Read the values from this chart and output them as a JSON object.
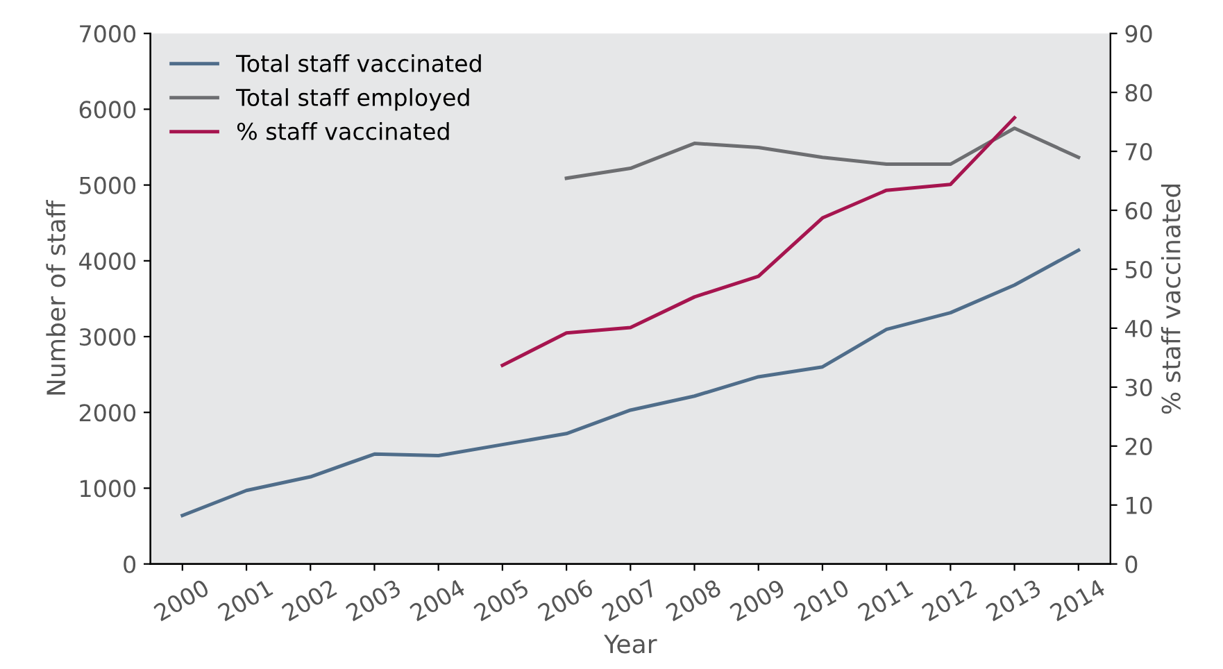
{
  "chart_data": {
    "type": "line",
    "xlabel": "Year",
    "ylabel": "Number of staff",
    "y2label": "% staff vaccinated",
    "categories": [
      "2000",
      "2001",
      "2002",
      "2003",
      "2004",
      "2005",
      "2006",
      "2007",
      "2008",
      "2009",
      "2010",
      "2011",
      "2012",
      "2013",
      "2014"
    ],
    "series": [
      {
        "name": "Total staff vaccinated",
        "color": "#4f6d8a",
        "values": [
          640,
          970,
          1150,
          1450,
          1430,
          1575,
          1720,
          2030,
          2215,
          2470,
          2600,
          3095,
          3315,
          3680,
          4140
        ]
      },
      {
        "name": "Total staff employed",
        "color": "#6d6e71",
        "values": [
          null,
          null,
          null,
          null,
          null,
          null,
          5090,
          5220,
          5550,
          5495,
          5365,
          5275,
          5275,
          5750,
          5365
        ]
      },
      {
        "name": "% staff vaccinated",
        "color": "#a6154f",
        "axis": "y2",
        "values": [
          null,
          null,
          null,
          null,
          null,
          33.7,
          39.2,
          40.1,
          45.3,
          48.8,
          58.7,
          63.4,
          64.4,
          75.7,
          null
        ]
      }
    ],
    "ylim": [
      0,
      7000
    ],
    "yticks": [
      0,
      1000,
      2000,
      3000,
      4000,
      5000,
      6000,
      7000
    ],
    "y2lim": [
      0,
      90
    ],
    "y2ticks": [
      0,
      10,
      20,
      30,
      40,
      50,
      60,
      70,
      80,
      90
    ],
    "grid": false,
    "legend": "top left",
    "marker": "none",
    "line_style": "solid"
  }
}
